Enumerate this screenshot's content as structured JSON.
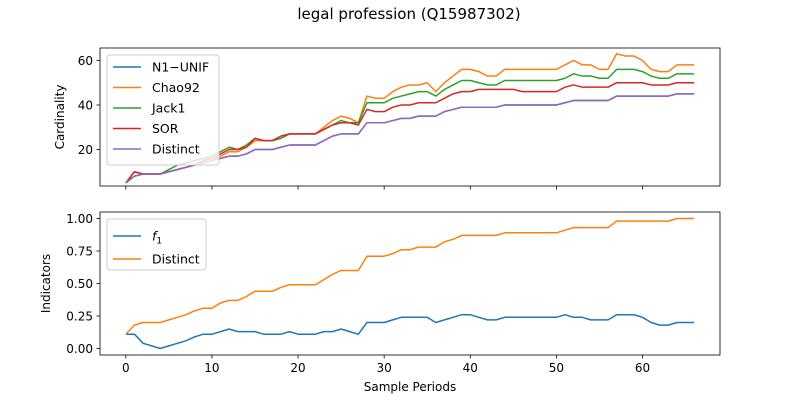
{
  "chart_data": [
    {
      "type": "line",
      "title": "legal profession (Q15987302)",
      "xlabel": "",
      "ylabel": "Cardinality",
      "xlim": [
        -3,
        69
      ],
      "ylim": [
        3.6,
        65.6
      ],
      "yticks": [
        20,
        40,
        60
      ],
      "xticks": [
        0,
        10,
        20,
        30,
        40,
        50,
        60
      ],
      "show_xticklabels": false,
      "grid": false,
      "legend": "upper left",
      "x": [
        0,
        1,
        2,
        3,
        4,
        5,
        6,
        7,
        8,
        9,
        10,
        11,
        12,
        13,
        14,
        15,
        16,
        17,
        18,
        19,
        20,
        21,
        22,
        23,
        24,
        25,
        26,
        27,
        28,
        29,
        30,
        31,
        32,
        33,
        34,
        35,
        36,
        37,
        38,
        39,
        40,
        41,
        42,
        43,
        44,
        45,
        46,
        47,
        48,
        49,
        50,
        51,
        52,
        53,
        54,
        55,
        56,
        57,
        58,
        59,
        60,
        61,
        62,
        63,
        64,
        65,
        66
      ],
      "series": [
        {
          "name": "N1−UNIF",
          "color": "#1f77b4",
          "values": [
            5,
            8,
            9,
            9,
            9,
            10,
            11,
            12,
            13,
            14,
            15,
            16,
            17,
            17,
            18,
            20,
            20,
            20,
            21,
            22,
            22,
            22,
            22,
            24,
            26,
            27,
            27,
            27,
            32,
            32,
            32,
            33,
            34,
            34,
            35,
            35,
            35,
            37,
            38,
            39,
            39,
            39,
            39,
            39,
            40,
            40,
            40,
            40,
            40,
            40,
            40,
            41,
            42,
            42,
            42,
            42,
            42,
            44,
            44,
            44,
            44,
            44,
            44,
            44,
            45,
            45,
            45
          ]
        },
        {
          "name": "Chao92",
          "color": "#ff7f0e",
          "values": [
            5,
            10,
            9,
            9,
            9,
            10,
            11,
            12,
            13,
            14,
            15,
            17,
            19,
            19,
            21,
            24,
            24,
            24,
            25,
            27,
            27,
            27,
            27,
            30,
            33,
            35,
            34,
            32,
            44,
            43,
            43,
            46,
            48,
            49,
            49,
            50,
            46,
            50,
            53,
            56,
            56,
            55,
            53,
            53,
            56,
            56,
            56,
            56,
            56,
            56,
            56,
            58,
            60,
            58,
            58,
            56,
            56,
            63,
            62,
            62,
            60,
            56,
            55,
            55,
            58,
            58,
            58
          ]
        },
        {
          "name": "Jack1",
          "color": "#2ca02c",
          "values": [
            5,
            8,
            9,
            9,
            9,
            11,
            13,
            14,
            15,
            16,
            17,
            19,
            21,
            20,
            22,
            25,
            24,
            24,
            25,
            27,
            27,
            27,
            27,
            29,
            31,
            33,
            32,
            32,
            41,
            41,
            41,
            43,
            44,
            45,
            46,
            46,
            44,
            47,
            49,
            51,
            51,
            50,
            49,
            49,
            51,
            51,
            51,
            51,
            51,
            51,
            51,
            52,
            54,
            53,
            53,
            52,
            52,
            56,
            56,
            56,
            55,
            53,
            52,
            52,
            54,
            54,
            54
          ]
        },
        {
          "name": "SOR",
          "color": "#d62728",
          "values": [
            5,
            10,
            9,
            9,
            9,
            10,
            11,
            12,
            13,
            15,
            16,
            18,
            20,
            20,
            21,
            25,
            24,
            24,
            26,
            27,
            27,
            27,
            27,
            29,
            31,
            32,
            32,
            31,
            38,
            37,
            37,
            39,
            40,
            40,
            41,
            41,
            41,
            43,
            45,
            46,
            46,
            47,
            47,
            47,
            47,
            47,
            46,
            46,
            46,
            46,
            46,
            48,
            49,
            48,
            48,
            48,
            48,
            50,
            50,
            50,
            50,
            49,
            49,
            49,
            50,
            50,
            50
          ]
        },
        {
          "name": "Distinct",
          "color": "#9467bd",
          "values": [
            5,
            8,
            9,
            9,
            9,
            10,
            11,
            12,
            13,
            14,
            15,
            16,
            17,
            17,
            18,
            20,
            20,
            20,
            21,
            22,
            22,
            22,
            22,
            24,
            26,
            27,
            27,
            27,
            32,
            32,
            32,
            33,
            34,
            34,
            35,
            35,
            35,
            37,
            38,
            39,
            39,
            39,
            39,
            39,
            40,
            40,
            40,
            40,
            40,
            40,
            40,
            41,
            42,
            42,
            42,
            42,
            42,
            44,
            44,
            44,
            44,
            44,
            44,
            44,
            45,
            45,
            45
          ]
        }
      ]
    },
    {
      "type": "line",
      "title": "",
      "xlabel": "Sample Periods",
      "ylabel": "Indicators",
      "xlim": [
        -3,
        69
      ],
      "ylim": [
        -0.05,
        1.05
      ],
      "yticks": [
        0.0,
        0.25,
        0.5,
        0.75,
        1.0
      ],
      "ytick_labels": [
        "0.00",
        "0.25",
        "0.50",
        "0.75",
        "1.00"
      ],
      "xticks": [
        0,
        10,
        20,
        30,
        40,
        50,
        60
      ],
      "xtick_labels": [
        "0",
        "10",
        "20",
        "30",
        "40",
        "50",
        "60"
      ],
      "grid": false,
      "legend": "upper left",
      "x": [
        0,
        1,
        2,
        3,
        4,
        5,
        6,
        7,
        8,
        9,
        10,
        11,
        12,
        13,
        14,
        15,
        16,
        17,
        18,
        19,
        20,
        21,
        22,
        23,
        24,
        25,
        26,
        27,
        28,
        29,
        30,
        31,
        32,
        33,
        34,
        35,
        36,
        37,
        38,
        39,
        40,
        41,
        42,
        43,
        44,
        45,
        46,
        47,
        48,
        49,
        50,
        51,
        52,
        53,
        54,
        55,
        56,
        57,
        58,
        59,
        60,
        61,
        62,
        63,
        64,
        65,
        66
      ],
      "series": [
        {
          "name": "f1",
          "legend_base": "f",
          "legend_sub": "1",
          "color": "#1f77b4",
          "values": [
            0.11,
            0.11,
            0.04,
            0.02,
            0.0,
            0.02,
            0.04,
            0.06,
            0.09,
            0.11,
            0.11,
            0.13,
            0.15,
            0.13,
            0.13,
            0.13,
            0.11,
            0.11,
            0.11,
            0.13,
            0.11,
            0.11,
            0.11,
            0.13,
            0.13,
            0.15,
            0.13,
            0.11,
            0.2,
            0.2,
            0.2,
            0.22,
            0.24,
            0.24,
            0.24,
            0.24,
            0.2,
            0.22,
            0.24,
            0.26,
            0.26,
            0.24,
            0.22,
            0.22,
            0.24,
            0.24,
            0.24,
            0.24,
            0.24,
            0.24,
            0.24,
            0.26,
            0.24,
            0.24,
            0.22,
            0.22,
            0.22,
            0.26,
            0.26,
            0.26,
            0.24,
            0.2,
            0.18,
            0.18,
            0.2,
            0.2,
            0.2
          ]
        },
        {
          "name": "Distinct",
          "color": "#ff7f0e",
          "values": [
            0.11,
            0.18,
            0.2,
            0.2,
            0.2,
            0.22,
            0.24,
            0.26,
            0.29,
            0.31,
            0.31,
            0.35,
            0.37,
            0.37,
            0.4,
            0.44,
            0.44,
            0.44,
            0.47,
            0.49,
            0.49,
            0.49,
            0.49,
            0.53,
            0.57,
            0.6,
            0.6,
            0.6,
            0.71,
            0.71,
            0.71,
            0.73,
            0.76,
            0.76,
            0.78,
            0.78,
            0.78,
            0.82,
            0.84,
            0.87,
            0.87,
            0.87,
            0.87,
            0.87,
            0.89,
            0.89,
            0.89,
            0.89,
            0.89,
            0.89,
            0.89,
            0.91,
            0.93,
            0.93,
            0.93,
            0.93,
            0.93,
            0.98,
            0.98,
            0.98,
            0.98,
            0.98,
            0.98,
            0.98,
            1.0,
            1.0,
            1.0
          ]
        }
      ]
    }
  ]
}
